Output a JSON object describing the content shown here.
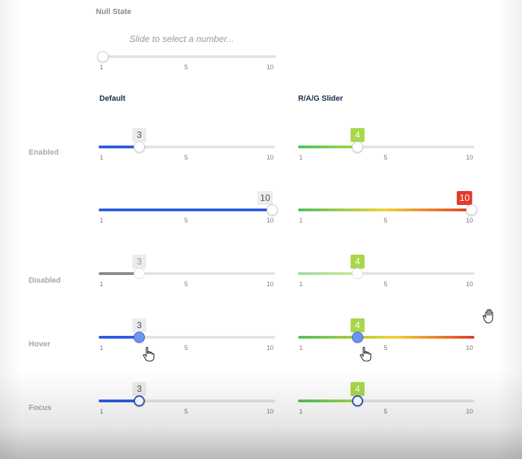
{
  "null_state": {
    "label": "Null State",
    "placeholder": "Slide to select a number..."
  },
  "columns": {
    "default": "Default",
    "rag": "R/A/G Slider"
  },
  "rows": {
    "enabled": "Enabled",
    "disabled": "Disabled",
    "hover": "Hover",
    "focus": "Focus"
  },
  "ticks": [
    "1",
    "5",
    "10"
  ],
  "slider_range": {
    "min": 1,
    "max": 10
  },
  "colors": {
    "default_fill": "#2d5be3",
    "disabled_fill": "#8a8a8a",
    "rag_green": "#4cc25a",
    "rag_amber": "#f0d232",
    "rag_red": "#e23a2c",
    "badge_green": "#a8d84a",
    "badge_red": "#e23a2c"
  },
  "sliders": {
    "null_state": {
      "value": 1
    },
    "default_enabled_a": {
      "value": 3,
      "badge": "3"
    },
    "default_enabled_b": {
      "value": 10,
      "badge": "10"
    },
    "default_disabled": {
      "value": 3,
      "badge": "3"
    },
    "default_hover": {
      "value": 3,
      "badge": "3"
    },
    "default_focus": {
      "value": 3,
      "badge": "3"
    },
    "rag_enabled_a": {
      "value": 4,
      "badge": "4"
    },
    "rag_enabled_b": {
      "value": 10,
      "badge": "10"
    },
    "rag_disabled": {
      "value": 4,
      "badge": "4"
    },
    "rag_hover": {
      "value": 4,
      "badge": "4"
    },
    "rag_focus": {
      "value": 4,
      "badge": "4"
    }
  },
  "icons": {
    "grab_cursor": "hand-grab-icon",
    "pointer_cursor": "hand-pointer-icon"
  }
}
